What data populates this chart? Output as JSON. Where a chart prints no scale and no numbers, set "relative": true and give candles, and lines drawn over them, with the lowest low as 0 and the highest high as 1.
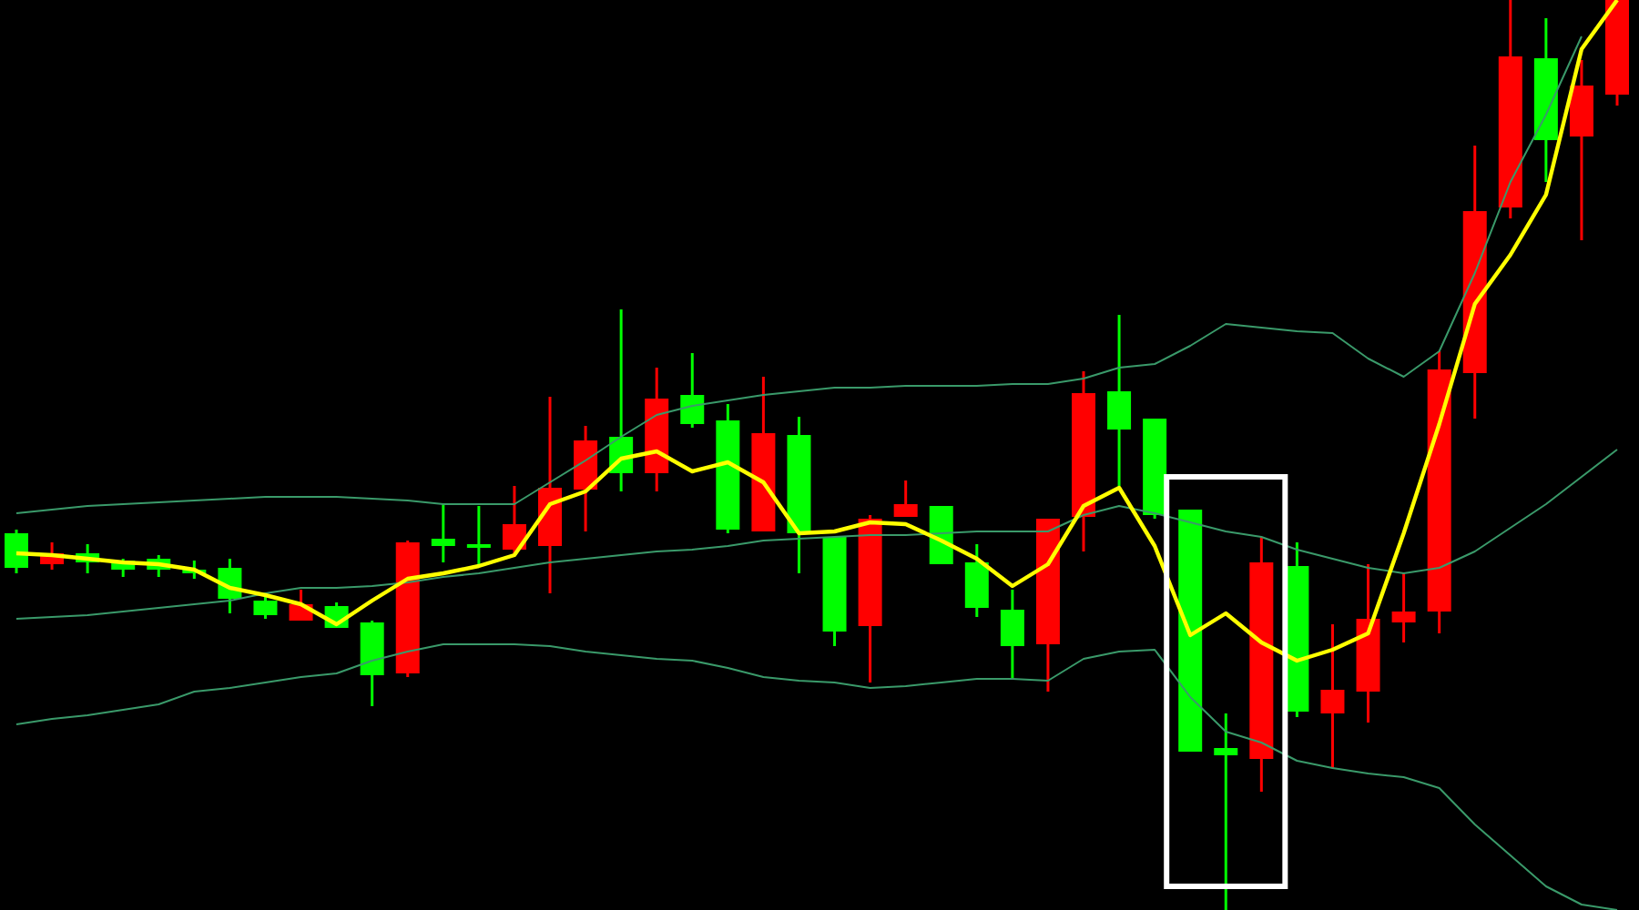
{
  "chart_data": {
    "type": "candlestick",
    "relative": true,
    "categories": [
      null,
      null,
      null,
      null,
      null,
      null,
      null,
      null,
      null,
      null,
      null,
      null,
      null,
      null,
      null,
      null,
      null,
      null,
      null,
      null,
      null,
      null,
      null,
      null,
      null,
      null,
      null,
      null,
      null,
      null,
      null,
      null,
      null,
      null,
      null,
      null,
      null,
      null,
      null,
      null,
      null,
      null,
      null,
      null,
      null,
      null
    ],
    "ohlc": [
      [
        0.414,
        0.418,
        0.37,
        0.376
      ],
      [
        0.38,
        0.404,
        0.374,
        0.392
      ],
      [
        0.392,
        0.402,
        0.37,
        0.382
      ],
      [
        0.384,
        0.386,
        0.366,
        0.374
      ],
      [
        0.386,
        0.39,
        0.366,
        0.374
      ],
      [
        0.374,
        0.384,
        0.364,
        0.372
      ],
      [
        0.376,
        0.386,
        0.326,
        0.342
      ],
      [
        0.34,
        0.344,
        0.32,
        0.324
      ],
      [
        0.318,
        0.352,
        0.318,
        0.336
      ],
      [
        0.334,
        0.338,
        0.31,
        0.31
      ],
      [
        0.316,
        0.318,
        0.224,
        0.258
      ],
      [
        0.26,
        0.406,
        0.256,
        0.404
      ],
      [
        0.408,
        0.446,
        0.382,
        0.4
      ],
      [
        0.402,
        0.444,
        0.38,
        0.398
      ],
      [
        0.396,
        0.466,
        0.39,
        0.424
      ],
      [
        0.4,
        0.564,
        0.348,
        0.464
      ],
      [
        0.462,
        0.532,
        0.416,
        0.516
      ],
      [
        0.52,
        0.66,
        0.46,
        0.48
      ],
      [
        0.48,
        0.596,
        0.46,
        0.562
      ],
      [
        0.566,
        0.612,
        0.53,
        0.534
      ],
      [
        0.538,
        0.556,
        0.414,
        0.418
      ],
      [
        0.416,
        0.586,
        0.416,
        0.524
      ],
      [
        0.522,
        0.542,
        0.37,
        0.414
      ],
      [
        0.41,
        0.41,
        0.29,
        0.306
      ],
      [
        0.312,
        0.434,
        0.25,
        0.43
      ],
      [
        0.432,
        0.472,
        0.432,
        0.446
      ],
      [
        0.444,
        0.444,
        0.38,
        0.38
      ],
      [
        0.382,
        0.402,
        0.322,
        0.332
      ],
      [
        0.33,
        0.352,
        0.254,
        0.29
      ],
      [
        0.292,
        0.43,
        0.24,
        0.43
      ],
      [
        0.432,
        0.592,
        0.394,
        0.568
      ],
      [
        0.57,
        0.654,
        0.466,
        0.528
      ],
      [
        0.54,
        0.54,
        0.43,
        0.434
      ],
      [
        0.44,
        0.44,
        0.174,
        0.174
      ],
      [
        0.178,
        0.216,
        0,
        0.17
      ],
      [
        0.166,
        0.41,
        0.13,
        0.382
      ],
      [
        0.378,
        0.404,
        0.212,
        0.218
      ],
      [
        0.216,
        0.314,
        0.156,
        0.242
      ],
      [
        0.24,
        0.38,
        0.206,
        0.32
      ],
      [
        0.316,
        0.37,
        0.294,
        0.328
      ],
      [
        0.328,
        0.614,
        0.304,
        0.594
      ],
      [
        0.59,
        0.84,
        0.54,
        0.768
      ],
      [
        0.772,
        1,
        0.76,
        0.938
      ],
      [
        0.936,
        0.98,
        0.8,
        0.846
      ],
      [
        0.85,
        0.934,
        0.736,
        0.906
      ],
      [
        0.896,
        1,
        0.884,
        1
      ]
    ],
    "colors": [
      "#00ff00",
      "#ff0000",
      "#00ff00",
      "#00ff00",
      "#00ff00",
      "#00ff00",
      "#00ff00",
      "#00ff00",
      "#ff0000",
      "#00ff00",
      "#00ff00",
      "#ff0000",
      "#00ff00",
      "#00ff00",
      "#ff0000",
      "#ff0000",
      "#ff0000",
      "#00ff00",
      "#ff0000",
      "#00ff00",
      "#00ff00",
      "#ff0000",
      "#00ff00",
      "#00ff00",
      "#ff0000",
      "#ff0000",
      "#00ff00",
      "#00ff00",
      "#00ff00",
      "#ff0000",
      "#ff0000",
      "#00ff00",
      "#00ff00",
      "#00ff00",
      "#00ff00",
      "#ff0000",
      "#00ff00",
      "#ff0000",
      "#ff0000",
      "#ff0000",
      "#ff0000",
      "#ff0000",
      "#ff0000",
      "#00ff00",
      "#ff0000",
      "#ff0000"
    ],
    "series": [
      {
        "type": "line",
        "color": "#3a9a6a",
        "values": [
          0.436,
          0.44,
          0.444,
          0.446,
          0.448,
          0.45,
          0.452,
          0.454,
          0.454,
          0.454,
          0.452,
          0.45,
          0.446,
          0.446,
          0.446,
          0.47,
          0.494,
          0.52,
          0.544,
          0.554,
          0.56,
          0.566,
          0.57,
          0.574,
          0.574,
          0.576,
          0.576,
          0.576,
          0.578,
          0.578,
          0.584,
          0.596,
          0.6,
          0.62,
          0.644,
          0.64,
          0.636,
          0.634,
          0.606,
          0.586,
          0.614,
          0.7,
          0.8,
          0.874,
          0.96,
          null
        ]
      },
      {
        "type": "line",
        "color": "#3a9a6a",
        "values": [
          0.32,
          0.322,
          0.324,
          0.328,
          0.332,
          0.336,
          0.34,
          0.348,
          0.354,
          0.354,
          0.356,
          0.36,
          0.366,
          0.37,
          0.376,
          0.382,
          0.386,
          0.39,
          0.394,
          0.396,
          0.4,
          0.406,
          0.408,
          0.41,
          0.412,
          0.412,
          0.414,
          0.416,
          0.416,
          0.416,
          0.434,
          0.444,
          0.436,
          0.426,
          0.416,
          0.41,
          0.396,
          0.386,
          0.376,
          0.37,
          0.376,
          0.394,
          0.42,
          0.446,
          0.476,
          0.506
        ]
      },
      {
        "type": "line",
        "color": "#3a9a6a",
        "values": [
          0.204,
          0.21,
          0.214,
          0.22,
          0.226,
          0.24,
          0.244,
          0.25,
          0.256,
          0.26,
          0.274,
          0.284,
          0.292,
          0.292,
          0.292,
          0.29,
          0.284,
          0.28,
          0.276,
          0.274,
          0.266,
          0.256,
          0.252,
          0.25,
          0.244,
          0.246,
          0.25,
          0.254,
          0.254,
          0.252,
          0.276,
          0.284,
          0.286,
          0.234,
          0.196,
          0.184,
          0.164,
          0.156,
          0.15,
          0.146,
          0.134,
          0.094,
          0.06,
          0.026,
          0.006,
          0
        ]
      },
      {
        "type": "line",
        "color": "#ffff00",
        "values": [
          0.392,
          0.39,
          0.386,
          0.382,
          0.38,
          0.374,
          0.354,
          0.346,
          0.336,
          0.314,
          0.34,
          0.364,
          0.37,
          0.378,
          0.39,
          0.446,
          0.46,
          0.496,
          0.504,
          0.482,
          0.492,
          0.47,
          0.414,
          0.416,
          0.426,
          0.424,
          0.406,
          0.386,
          0.356,
          0.38,
          0.444,
          0.464,
          0.4,
          0.302,
          0.326,
          0.294,
          0.274,
          0.286,
          0.304,
          0.414,
          0.534,
          0.666,
          0.72,
          0.786,
          0.946,
          1
        ]
      }
    ]
  }
}
